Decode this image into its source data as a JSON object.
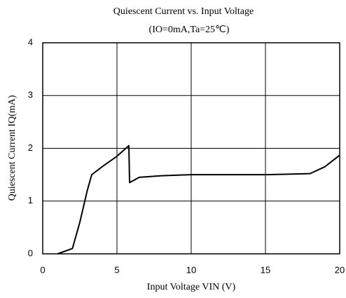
{
  "chart_data": {
    "type": "line",
    "title": "Quiescent Current vs. Input Voltage",
    "subtitle": "(IO=0mA,Ta=25℃)",
    "x_label": "Input Voltage VIN (V)",
    "y_label": "Quiescent Current IQ(mA)",
    "x": [
      1,
      2,
      2.5,
      3,
      3.3,
      4,
      5,
      5.8,
      5.85,
      6.5,
      8,
      10,
      15,
      18,
      19,
      20
    ],
    "series": [
      {
        "color": "#000000",
        "values": [
          0,
          0.1,
          0.6,
          1.2,
          1.5,
          1.65,
          1.85,
          2.05,
          1.35,
          1.45,
          1.48,
          1.5,
          1.5,
          1.52,
          1.65,
          1.87
        ]
      }
    ],
    "xlim": [
      0,
      20
    ],
    "xticks": [
      0,
      5,
      10,
      15,
      20
    ],
    "ylim": [
      0,
      4
    ],
    "yticks": [
      0,
      1,
      2,
      3,
      4
    ],
    "grid": true
  }
}
